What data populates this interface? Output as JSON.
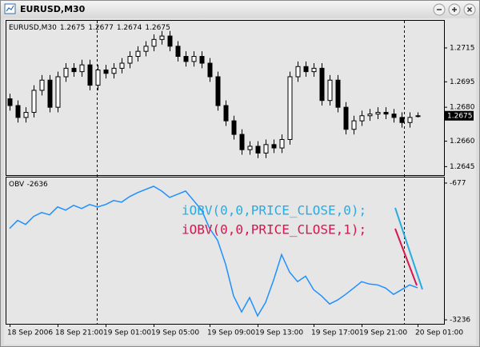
{
  "window": {
    "title": "EURUSD,M30"
  },
  "chart_data": [
    {
      "type": "candlestick",
      "title": "EURUSD,M30",
      "categories": [
        "18 Sep 2006",
        null,
        null,
        null,
        null,
        null,
        "18 Sep 21:00",
        null,
        null,
        null,
        null,
        null,
        "19 Sep 01:00",
        null,
        null,
        null,
        null,
        null,
        "19 Sep 05:00",
        null,
        null,
        null,
        null,
        null,
        null,
        "19 Sep 09:00",
        null,
        null,
        null,
        null,
        null,
        "19 Sep 13:00",
        null,
        null,
        null,
        null,
        null,
        null,
        "19 Sep 17:00",
        null,
        null,
        null,
        null,
        null,
        "19 Sep 21:00",
        null,
        null,
        null,
        null,
        null,
        null,
        "20 Sep 01:00"
      ],
      "open": [
        1.2685,
        1.2681,
        1.2674,
        1.2677,
        1.269,
        1.2696,
        1.268,
        1.2698,
        1.2703,
        1.2701,
        1.2705,
        1.2693,
        1.2702,
        1.27,
        1.2703,
        1.2706,
        1.271,
        1.2713,
        1.2716,
        1.272,
        1.2722,
        1.2716,
        1.271,
        1.2707,
        1.271,
        1.2706,
        1.2698,
        1.2681,
        1.2672,
        1.2664,
        1.2655,
        1.2657,
        1.2653,
        1.2658,
        1.2656,
        1.2661,
        1.2698,
        1.2704,
        1.2701,
        1.2703,
        1.2684,
        1.2696,
        1.268,
        1.2667,
        1.2672,
        1.2675,
        1.2676,
        1.2677,
        1.2676,
        1.2674,
        1.2671,
        1.2675
      ],
      "high": [
        1.2688,
        1.2684,
        1.268,
        1.2693,
        1.2699,
        1.2699,
        1.2701,
        1.2706,
        1.2706,
        1.2708,
        1.2708,
        1.2705,
        1.2705,
        1.2706,
        1.2709,
        1.2713,
        1.2716,
        1.2719,
        1.2723,
        1.2725,
        1.2725,
        1.2719,
        1.2713,
        1.2713,
        1.2713,
        1.2709,
        1.2701,
        1.2684,
        1.2675,
        1.2667,
        1.266,
        1.266,
        1.2661,
        1.2661,
        1.2664,
        1.2701,
        1.2707,
        1.2707,
        1.2706,
        1.2706,
        1.2699,
        1.2699,
        1.2683,
        1.2675,
        1.2678,
        1.2679,
        1.268,
        1.268,
        1.2679,
        1.2677,
        1.2677,
        1.2677
      ],
      "low": [
        1.2678,
        1.2671,
        1.2671,
        1.2674,
        1.2687,
        1.2677,
        1.2677,
        1.2695,
        1.2698,
        1.2698,
        1.269,
        1.269,
        1.2697,
        1.2697,
        1.27,
        1.2703,
        1.2707,
        1.271,
        1.2713,
        1.2717,
        1.2713,
        1.2707,
        1.2704,
        1.2704,
        1.2703,
        1.2695,
        1.2678,
        1.2669,
        1.2661,
        1.2652,
        1.2652,
        1.265,
        1.265,
        1.2653,
        1.2653,
        1.2658,
        1.2695,
        1.2698,
        1.2698,
        1.2681,
        1.2681,
        1.2677,
        1.2664,
        1.2664,
        1.2669,
        1.2672,
        1.2673,
        1.2673,
        1.2671,
        1.2668,
        1.2668,
        1.2674
      ],
      "close": [
        1.2681,
        1.2674,
        1.2677,
        1.269,
        1.2696,
        1.268,
        1.2698,
        1.2703,
        1.2701,
        1.2705,
        1.2693,
        1.2702,
        1.27,
        1.2703,
        1.2706,
        1.271,
        1.2713,
        1.2716,
        1.272,
        1.2722,
        1.2716,
        1.271,
        1.2707,
        1.271,
        1.2706,
        1.2698,
        1.2681,
        1.2672,
        1.2664,
        1.2655,
        1.2657,
        1.2653,
        1.2658,
        1.2656,
        1.2661,
        1.2698,
        1.2704,
        1.2701,
        1.2703,
        1.2684,
        1.2696,
        1.268,
        1.2667,
        1.2672,
        1.2675,
        1.2676,
        1.2677,
        1.2676,
        1.2674,
        1.2671,
        1.2674,
        1.2675
      ],
      "color_up": "#ffffff",
      "color_down": "#000000",
      "ylim": [
        1.264,
        1.2731
      ],
      "yticks": [
        1.2715,
        1.2695,
        {
          "value": 1.268,
          "label": "1.2680"
        },
        {
          "value": 1.266,
          "label": "1.2660"
        },
        1.2645
      ]
    },
    {
      "type": "line",
      "title": "OBV",
      "color": "#1e90ff",
      "values": [
        -1525,
        -1376,
        -1451,
        -1302,
        -1228,
        -1272,
        -1123,
        -1183,
        -1094,
        -1153,
        -1079,
        -1123,
        -1079,
        -1004,
        -1034,
        -930,
        -856,
        -796,
        -737,
        -826,
        -945,
        -885,
        -826,
        -1004,
        -1183,
        -1525,
        -1748,
        -2195,
        -2790,
        -3088,
        -2820,
        -3162,
        -2909,
        -2492,
        -2016,
        -2344,
        -2522,
        -2418,
        -2671,
        -2790,
        -2939,
        -2864,
        -2760,
        -2641,
        -2522,
        -2567,
        -2582,
        -2641,
        -2760,
        -2671,
        -2582,
        -2636
      ],
      "ylim": [
        -3310,
        -573
      ],
      "yticks": [
        -677,
        -3236
      ],
      "annotations": [
        {
          "text": "iOBV(0,0,PRICE_CLOSE,0);",
          "color": "#29abe2"
        },
        {
          "text": "iOBV(0,0,PRICE_CLOSE,1);",
          "color": "#d6164e"
        }
      ]
    }
  ]
}
